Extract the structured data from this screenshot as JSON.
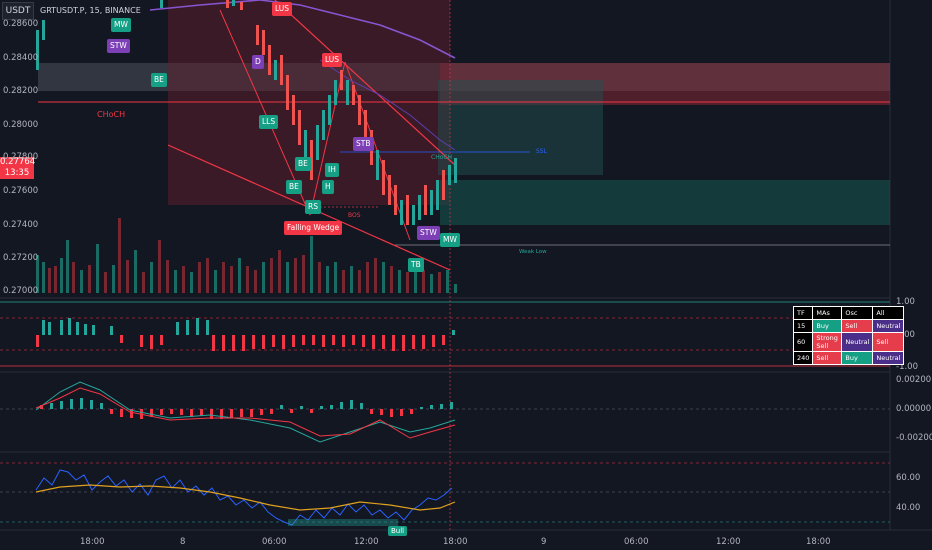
{
  "header": {
    "currency": "USDT",
    "symbol": "GRTUSDT.P, 15, BINANCE"
  },
  "last_price": {
    "value": "0.27764",
    "countdown": "13:35"
  },
  "price_axis": [
    "0.28600",
    "0.28400",
    "0.28200",
    "0.28000",
    "0.27800",
    "0.27600",
    "0.27400",
    "0.27200",
    "0.27000"
  ],
  "osc1_axis": [
    "1.00",
    "0.00",
    "-1.00"
  ],
  "macd_axis": [
    "0.00200",
    "0.00000",
    "-0.00200"
  ],
  "rsi_axis": [
    "60.00",
    "40.00"
  ],
  "time_axis": [
    "18:00",
    "8",
    "06:00",
    "12:00",
    "18:00",
    "9",
    "06:00",
    "12:00",
    "18:00"
  ],
  "annotations": {
    "mw1": "MW",
    "stw1": "STW",
    "be1": "BE",
    "d": "D",
    "lus1": "LUS",
    "lus2": "LUS",
    "lls": "LLS",
    "stb": "STB",
    "be2": "BE",
    "ih": "IH",
    "h": "H",
    "be3": "BE",
    "rs": "RS",
    "stw2": "STW",
    "mw2": "MW",
    "tb": "TB",
    "falling_wedge": "Falling Wedge",
    "choch_left": "CHoCH",
    "choch_right": "CHoCH",
    "bos": "BOS",
    "ssl": "SSL",
    "weak_low": "Weak Low",
    "bull": "Bull"
  },
  "rating_table": {
    "headers": [
      "TF",
      "MAs",
      "Osc",
      "All"
    ],
    "rows": [
      {
        "tf": "15",
        "mas": "Buy",
        "osc": "Sell",
        "all": "Neutral"
      },
      {
        "tf": "60",
        "mas": "Strong Sell",
        "osc": "Neutral",
        "all": "Sell"
      },
      {
        "tf": "240",
        "mas": "Sell",
        "osc": "Buy",
        "all": "Neutral"
      }
    ]
  },
  "chart_data": {
    "type": "candlestick",
    "title": "GRTUSDT.P, 15, BINANCE",
    "ylim": [
      0.27,
      0.287
    ],
    "candles_close_approx": [
      0.285,
      0.2862,
      0.2855,
      0.2868,
      0.2872,
      0.2866,
      0.286,
      0.284,
      0.2825,
      0.28,
      0.278,
      0.276,
      0.2745,
      0.277,
      0.281,
      0.2832,
      0.282,
      0.2795,
      0.277,
      0.2745,
      0.2755,
      0.2765,
      0.2776
    ],
    "last_close": 0.27764
  }
}
